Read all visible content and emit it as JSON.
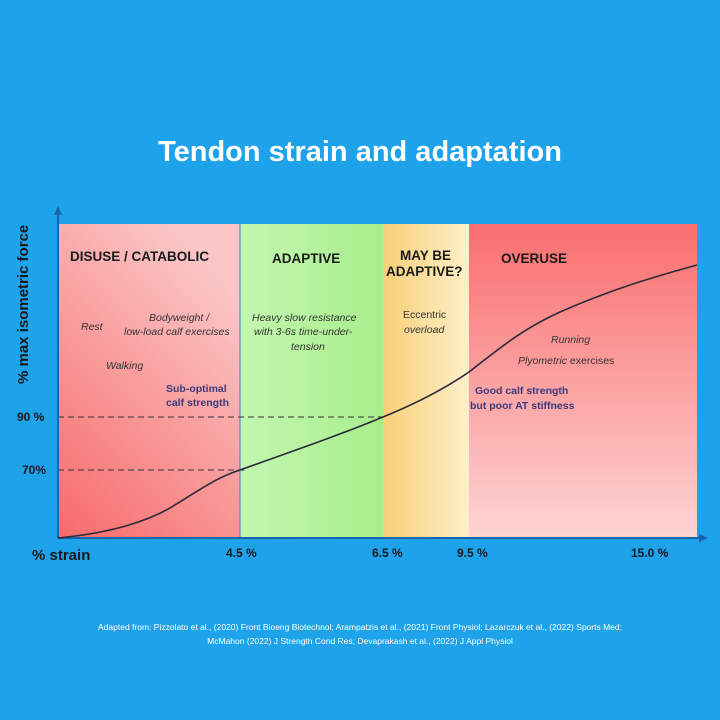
{
  "title": "Tendon strain and adaptation",
  "y_axis_label": "% max isometric force",
  "x_axis_label": "% strain",
  "y_ticks": [
    "90 %",
    "70%"
  ],
  "x_ticks": [
    "4.5 %",
    "6.5 %",
    "9.5 %",
    "15.0 %"
  ],
  "zones": [
    {
      "label": "DISUSE / CATABOLIC",
      "color": "#f98080"
    },
    {
      "label": "ADAPTIVE",
      "color": "#b8f5a0"
    },
    {
      "label_line1": "MAY BE",
      "label_line2": "ADAPTIVE?",
      "color": "#fbe0a0"
    },
    {
      "label": "OVERUSE",
      "color": "#fb7a7a"
    }
  ],
  "annotations": {
    "rest": "Rest",
    "walking": "Walking",
    "bodyweight_1": "Bodyweight /",
    "bodyweight_2": "low-load calf exercises",
    "suboptimal_1": "Sub-optimal",
    "suboptimal_2": "calf strength",
    "hsr_1": "Heavy slow resistance",
    "hsr_2": "with 3-6s time-under-",
    "hsr_3": "tension",
    "eccentric_1": "Eccentric",
    "eccentric_2": "overload",
    "running": "Running",
    "plyo_italic": "Plyometric",
    "plyo_rest": " exercises",
    "good_1": "Good calf strength",
    "good_2": "but poor AT stiffness"
  },
  "footer": {
    "line1": "Adapted from: Pizzolato et al., (2020) Front Bioeng Biotechnol; Arampatzis et al., (2021) Front Physiol; Lazarczuk et al., (2022) Sports Med;",
    "line2": "McMahon (2022) J Strength Cond Res; Devaprakash et al., (2022) J Appl Physiol"
  },
  "colors": {
    "background": "#1ea2ea",
    "axis": "#1565a8",
    "curve": "#2a2a3a"
  }
}
